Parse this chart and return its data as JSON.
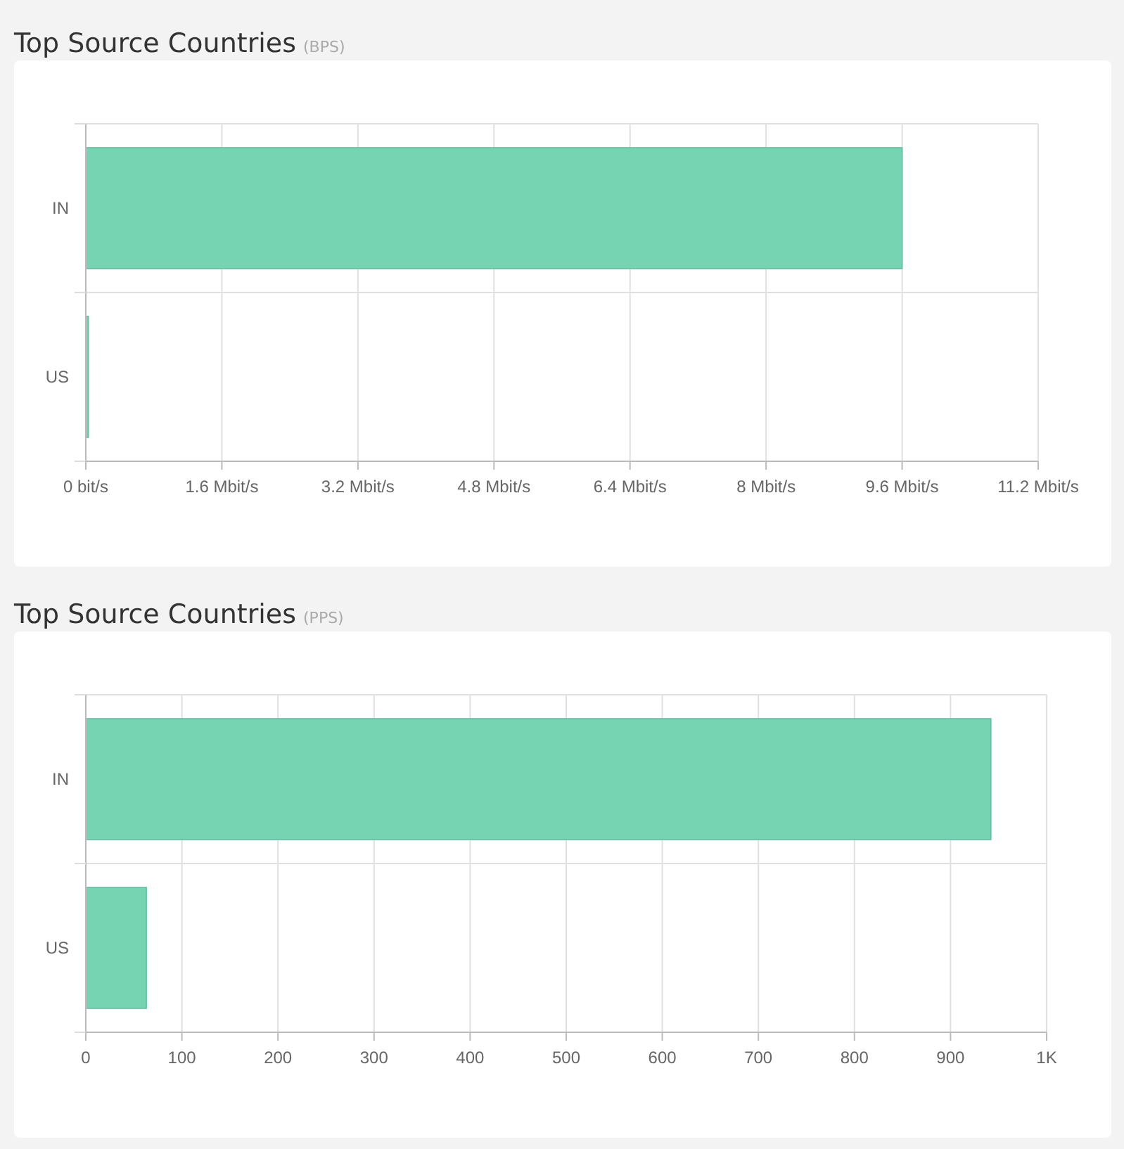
{
  "chart_data": [
    {
      "type": "bar",
      "orientation": "horizontal",
      "title": "Top Source Countries",
      "subtitle": "(BPS)",
      "categories": [
        "IN",
        "US"
      ],
      "values": [
        9.6,
        0.03
      ],
      "color": "#76d4b2",
      "xlim": [
        0,
        11.2
      ],
      "xticks": [
        {
          "value": 0,
          "label": "0 bit/s"
        },
        {
          "value": 1.6,
          "label": "1.6 Mbit/s"
        },
        {
          "value": 3.2,
          "label": "3.2 Mbit/s"
        },
        {
          "value": 4.8,
          "label": "4.8 Mbit/s"
        },
        {
          "value": 6.4,
          "label": "6.4 Mbit/s"
        },
        {
          "value": 8,
          "label": "8 Mbit/s"
        },
        {
          "value": 9.6,
          "label": "9.6 Mbit/s"
        },
        {
          "value": 11.2,
          "label": "11.2 Mbit/s"
        }
      ],
      "grid": true
    },
    {
      "type": "bar",
      "orientation": "horizontal",
      "title": "Top Source Countries",
      "subtitle": "(PPS)",
      "categories": [
        "IN",
        "US"
      ],
      "values": [
        942,
        63
      ],
      "color": "#76d4b2",
      "xlim": [
        0,
        1000
      ],
      "xticks": [
        0,
        100,
        200,
        300,
        400,
        500,
        600,
        700,
        800,
        900,
        {
          "value": 1000,
          "label": "1K"
        }
      ],
      "grid": true
    }
  ]
}
